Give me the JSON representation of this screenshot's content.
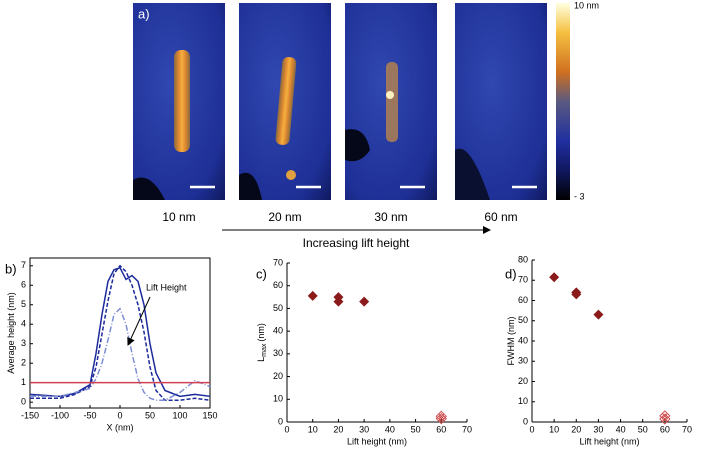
{
  "panel_a": {
    "label": "a)",
    "images": [
      "10 nm",
      "20 nm",
      "30 nm",
      "60 nm"
    ],
    "colorbar": {
      "top": "10 nm",
      "bottom": "- 3"
    },
    "arrow_label": "Increasing lift height"
  },
  "chart_data": [
    {
      "type": "line",
      "panel": "b)",
      "xlabel": "X (nm)",
      "ylabel": "Average height (nm)",
      "annotation": "Lift Height",
      "x": [
        -150,
        -125,
        -100,
        -75,
        -50,
        -40,
        -30,
        -20,
        -10,
        0,
        10,
        20,
        30,
        40,
        50,
        60,
        75,
        100,
        125,
        150
      ],
      "series": [
        {
          "color": "#1c2a9c",
          "dash": "solid",
          "values": [
            0.4,
            0.35,
            0.3,
            0.45,
            0.9,
            2.5,
            4.5,
            6.2,
            6.8,
            6.9,
            6.3,
            6.5,
            6.2,
            5.0,
            3.0,
            1.5,
            0.6,
            0.3,
            0.4,
            0.3
          ]
        },
        {
          "color": "#1c2a9c",
          "dash": "dashed",
          "values": [
            0.2,
            0.2,
            0.2,
            0.4,
            0.8,
            1.8,
            3.5,
            5.2,
            6.6,
            7.0,
            6.7,
            6.0,
            5.0,
            3.6,
            1.8,
            0.6,
            0.1,
            0.1,
            0.2,
            0.1
          ]
        },
        {
          "color": "#7f8fd4",
          "dash": "dashdot",
          "values": [
            0.3,
            0.3,
            0.3,
            0.5,
            0.7,
            1.2,
            2.0,
            3.2,
            4.5,
            4.8,
            4.0,
            2.5,
            1.2,
            0.5,
            0.2,
            0.1,
            0.1,
            0.5,
            1.1,
            0.8
          ]
        },
        {
          "color": "#d04050",
          "dash": "solid",
          "values": [
            1,
            1,
            1,
            1,
            1,
            1,
            1,
            1,
            1,
            1,
            1,
            1,
            1,
            1,
            1,
            1,
            1,
            1,
            1,
            1
          ]
        }
      ],
      "xlim": [
        -150,
        150
      ],
      "xticks": [
        -150,
        -100,
        -50,
        0,
        50,
        100,
        150
      ],
      "ylim": [
        -0.3,
        7.4
      ],
      "yticks": [
        0,
        1,
        2,
        3,
        4,
        5,
        6,
        7
      ]
    },
    {
      "type": "scatter",
      "panel": "c)",
      "xlabel": "Lift height (nm)",
      "ylabel": "L",
      "ylabel_sub": "max",
      "ylabel_unit": "(nm)",
      "series": [
        {
          "color": "#8b1a1a",
          "marker": "diamond",
          "x": [
            10,
            20,
            20,
            30
          ],
          "values": [
            55.5,
            55,
            53,
            53
          ]
        },
        {
          "color": "#cc4444",
          "marker": "x-diamond",
          "x": [
            60,
            60
          ],
          "values": [
            2.5,
            1.5
          ]
        }
      ],
      "xlim": [
        0,
        70
      ],
      "xticks": [
        0,
        10,
        20,
        30,
        40,
        50,
        60,
        70
      ],
      "ylim": [
        0,
        70
      ],
      "yticks": [
        0,
        10,
        20,
        30,
        40,
        50,
        60,
        70
      ]
    },
    {
      "type": "scatter",
      "panel": "d)",
      "xlabel": "Lift height (nm)",
      "ylabel": "FWHM (nm)",
      "series": [
        {
          "color": "#8b1a1a",
          "marker": "diamond",
          "x": [
            10,
            20,
            20,
            30
          ],
          "values": [
            71.5,
            64,
            63,
            53
          ]
        },
        {
          "color": "#cc4444",
          "marker": "x-diamond",
          "x": [
            60,
            60
          ],
          "values": [
            3,
            1.5
          ]
        }
      ],
      "xlim": [
        0,
        70
      ],
      "xticks": [
        0,
        10,
        20,
        30,
        40,
        50,
        60,
        70
      ],
      "ylim": [
        0,
        80
      ],
      "yticks": [
        0,
        10,
        20,
        30,
        40,
        50,
        60,
        70,
        80
      ]
    }
  ]
}
